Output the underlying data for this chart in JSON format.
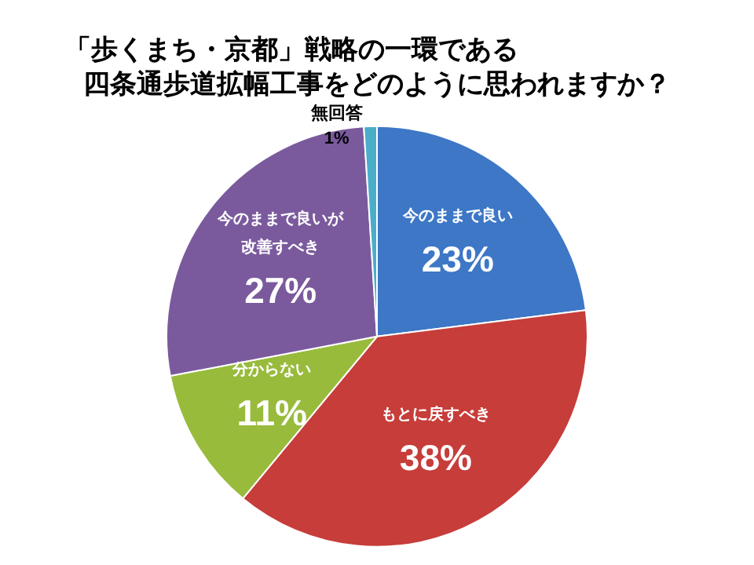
{
  "chart_data": {
    "type": "pie",
    "title": "「歩くまち・京都」戦略の一環である四条通歩道拡幅工事をどのように思われますか？",
    "categories": [
      "今のままで良い",
      "もとに戻すべき",
      "分からない",
      "今のままで良いが改善すべき",
      "無回答"
    ],
    "values": [
      23,
      38,
      11,
      27,
      1
    ],
    "value_labels": [
      "23%",
      "38%",
      "11%",
      "27%",
      "1%"
    ],
    "colors": [
      "#3d77c6",
      "#c63d3a",
      "#98bb3c",
      "#7a5a9d",
      "#4aaec8"
    ],
    "legend": false
  }
}
